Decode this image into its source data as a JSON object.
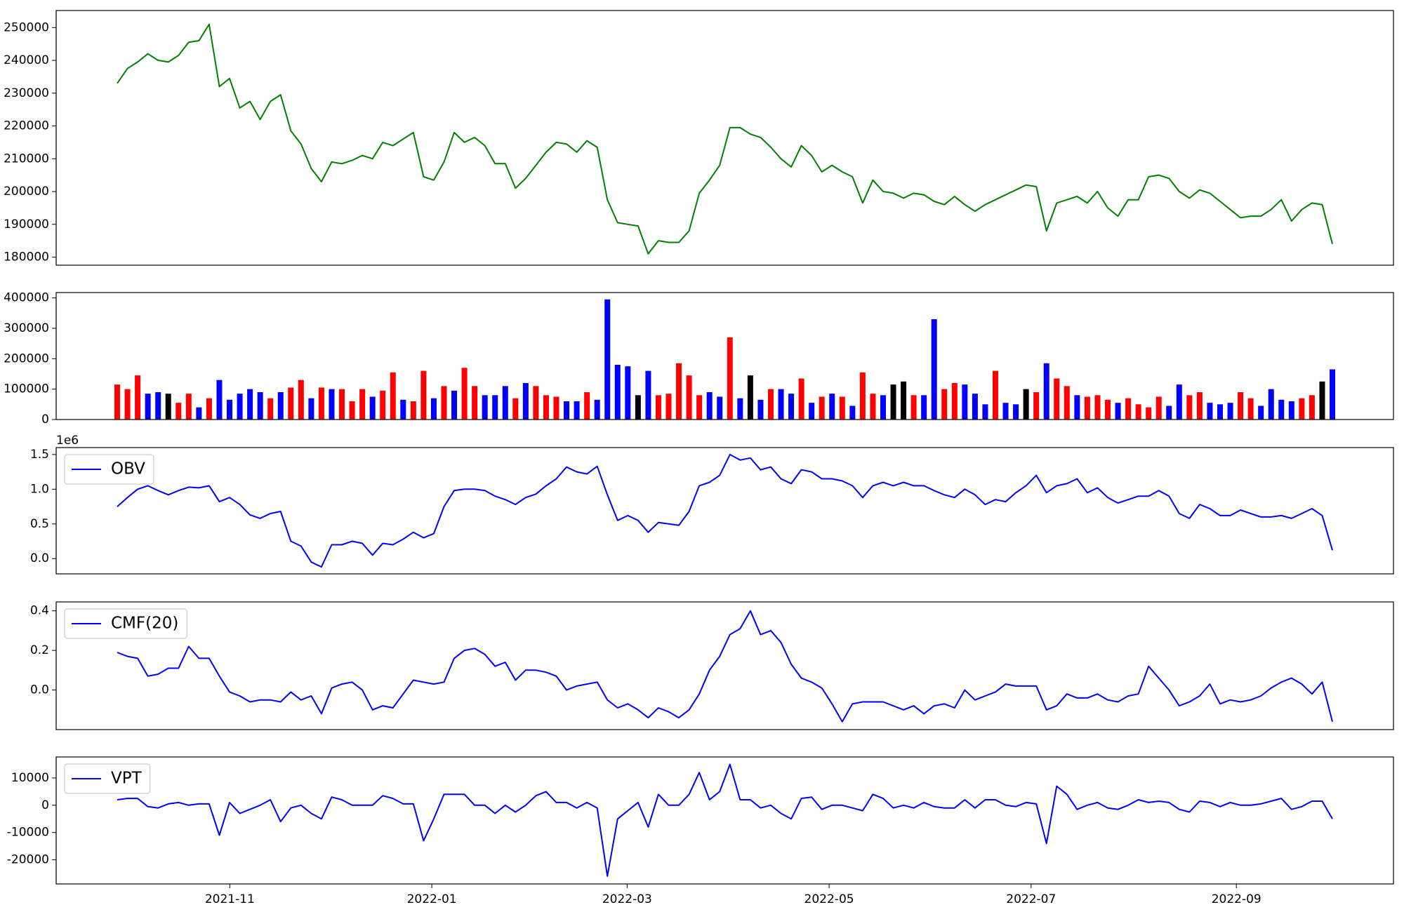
{
  "chart_data": [
    {
      "type": "line",
      "color": "#008000",
      "values": [
        233000,
        237500,
        239500,
        242000,
        240000,
        239500,
        241500,
        245500,
        246000,
        251000,
        232000,
        234500,
        225500,
        227500,
        222000,
        227500,
        229500,
        218500,
        214500,
        207000,
        203000,
        209000,
        208500,
        209500,
        211000,
        210000,
        215000,
        214000,
        216000,
        218000,
        204500,
        203500,
        209000,
        218000,
        215000,
        216500,
        214000,
        208500,
        208500,
        201000,
        204000,
        208000,
        212000,
        215000,
        214500,
        212000,
        215500,
        213500,
        197500,
        190500,
        190000,
        189500,
        181000,
        185000,
        184500,
        184500,
        188000,
        199500,
        203500,
        208000,
        219500,
        219500,
        217500,
        216500,
        213500,
        210000,
        207500,
        214000,
        211000,
        206000,
        208000,
        206000,
        204500,
        196500,
        203500,
        200000,
        199500,
        198000,
        199500,
        199000,
        197000,
        196000,
        198500,
        196000,
        194000,
        196000,
        197500,
        199000,
        200500,
        202000,
        201500,
        188000,
        196500,
        197500,
        198500,
        196500,
        200000,
        195000,
        192500,
        197500,
        197500,
        204500,
        205000,
        204000,
        200000,
        198000,
        200500,
        199500,
        197000,
        194500,
        192000,
        192500,
        192500,
        194500,
        197500,
        191000,
        194500,
        196500,
        196000,
        184000
      ],
      "ylim": [
        177540,
        255200
      ],
      "yticks": [
        180000,
        190000,
        200000,
        210000,
        220000,
        230000,
        240000,
        250000
      ]
    },
    {
      "type": "bar",
      "values": [
        115000,
        100000,
        145000,
        85000,
        90000,
        85000,
        55000,
        85000,
        40000,
        70000,
        130000,
        65000,
        85000,
        100000,
        90000,
        70000,
        90000,
        105000,
        130000,
        70000,
        105000,
        100000,
        100000,
        60000,
        100000,
        75000,
        95000,
        155000,
        65000,
        60000,
        160000,
        70000,
        110000,
        95000,
        170000,
        110000,
        80000,
        80000,
        110000,
        70000,
        120000,
        110000,
        80000,
        75000,
        60000,
        60000,
        90000,
        65000,
        395000,
        180000,
        175000,
        80000,
        160000,
        80000,
        85000,
        185000,
        145000,
        80000,
        90000,
        75000,
        270000,
        70000,
        145000,
        65000,
        100000,
        100000,
        85000,
        135000,
        55000,
        75000,
        85000,
        75000,
        45000,
        155000,
        85000,
        80000,
        115000,
        125000,
        80000,
        80000,
        330000,
        100000,
        120000,
        115000,
        85000,
        50000,
        160000,
        55000,
        50000,
        100000,
        90000,
        185000,
        135000,
        110000,
        80000,
        75000,
        80000,
        65000,
        55000,
        70000,
        50000,
        40000,
        75000,
        45000,
        115000,
        80000,
        90000,
        55000,
        50000,
        55000,
        90000,
        70000,
        45000,
        100000,
        65000,
        60000,
        70000,
        80000,
        125000,
        165000
      ],
      "colors": [
        "red",
        "red",
        "red",
        "blue",
        "blue",
        "black",
        "red",
        "red",
        "blue",
        "red",
        "blue",
        "blue",
        "blue",
        "blue",
        "blue",
        "red",
        "blue",
        "red",
        "red",
        "blue",
        "red",
        "blue",
        "red",
        "red",
        "red",
        "blue",
        "red",
        "red",
        "blue",
        "red",
        "red",
        "blue",
        "red",
        "blue",
        "red",
        "red",
        "blue",
        "blue",
        "blue",
        "red",
        "blue",
        "red",
        "red",
        "red",
        "blue",
        "blue",
        "red",
        "blue",
        "blue",
        "blue",
        "blue",
        "black",
        "blue",
        "red",
        "red",
        "red",
        "red",
        "red",
        "blue",
        "blue",
        "red",
        "blue",
        "black",
        "blue",
        "red",
        "blue",
        "blue",
        "red",
        "blue",
        "red",
        "blue",
        "red",
        "blue",
        "red",
        "red",
        "blue",
        "black",
        "black",
        "red",
        "blue",
        "blue",
        "red",
        "red",
        "blue",
        "blue",
        "blue",
        "red",
        "blue",
        "blue",
        "black",
        "red",
        "blue",
        "red",
        "red",
        "blue",
        "red",
        "red",
        "red",
        "blue",
        "red",
        "red",
        "red",
        "red",
        "blue",
        "blue",
        "red",
        "red",
        "blue",
        "blue",
        "blue",
        "red",
        "red",
        "blue",
        "blue",
        "blue",
        "blue",
        "red",
        "red",
        "black",
        "blue"
      ],
      "ylim": [
        0,
        417600
      ],
      "yticks": [
        0,
        100000,
        200000,
        300000,
        400000
      ]
    },
    {
      "type": "line",
      "legend": "upper left",
      "y_offset_label": "1e6",
      "series": [
        {
          "name": "OBV",
          "color": "#0000ff",
          "values": [
            0.75,
            0.88,
            1.0,
            1.05,
            0.98,
            0.92,
            0.98,
            1.03,
            1.02,
            1.05,
            0.82,
            0.88,
            0.78,
            0.63,
            0.58,
            0.65,
            0.68,
            0.25,
            0.18,
            -0.05,
            -0.12,
            0.2,
            0.2,
            0.25,
            0.22,
            0.05,
            0.22,
            0.2,
            0.28,
            0.38,
            0.3,
            0.36,
            0.75,
            0.98,
            1.0,
            1.0,
            0.98,
            0.9,
            0.85,
            0.78,
            0.88,
            0.93,
            1.05,
            1.15,
            1.32,
            1.25,
            1.22,
            1.33,
            0.92,
            0.55,
            0.62,
            0.55,
            0.38,
            0.52,
            0.5,
            0.48,
            0.68,
            1.05,
            1.1,
            1.2,
            1.5,
            1.42,
            1.45,
            1.28,
            1.32,
            1.15,
            1.08,
            1.28,
            1.25,
            1.15,
            1.15,
            1.12,
            1.05,
            0.88,
            1.05,
            1.1,
            1.05,
            1.1,
            1.05,
            1.05,
            0.98,
            0.92,
            0.88,
            1.0,
            0.92,
            0.78,
            0.85,
            0.82,
            0.95,
            1.05,
            1.2,
            0.95,
            1.05,
            1.08,
            1.15,
            0.95,
            1.02,
            0.88,
            0.8,
            0.85,
            0.9,
            0.9,
            0.98,
            0.9,
            0.65,
            0.58,
            0.78,
            0.72,
            0.62,
            0.62,
            0.7,
            0.65,
            0.6,
            0.6,
            0.62,
            0.58,
            0.65,
            0.72,
            0.62,
            0.12
          ]
        }
      ],
      "ylim": [
        -0.22,
        1.6
      ],
      "yticks": [
        {
          "value": 0,
          "label": "0.0"
        },
        0.5,
        {
          "value": 1,
          "label": "1.0"
        },
        1.5
      ]
    },
    {
      "type": "line",
      "legend": "upper left",
      "series": [
        {
          "name": "CMF(20)",
          "color": "#0000ff",
          "values": [
            0.19,
            0.17,
            0.16,
            0.07,
            0.08,
            0.11,
            0.11,
            0.22,
            0.16,
            0.16,
            0.07,
            -0.01,
            -0.03,
            -0.06,
            -0.05,
            -0.05,
            -0.06,
            -0.01,
            -0.05,
            -0.03,
            -0.12,
            0.01,
            0.03,
            0.04,
            0.0,
            -0.1,
            -0.08,
            -0.09,
            -0.02,
            0.05,
            0.04,
            0.03,
            0.04,
            0.16,
            0.2,
            0.21,
            0.18,
            0.12,
            0.14,
            0.05,
            0.1,
            0.1,
            0.09,
            0.07,
            0.0,
            0.02,
            0.03,
            0.04,
            -0.05,
            -0.09,
            -0.07,
            -0.1,
            -0.14,
            -0.09,
            -0.11,
            -0.14,
            -0.1,
            -0.02,
            0.1,
            0.17,
            0.28,
            0.31,
            0.4,
            0.28,
            0.3,
            0.24,
            0.13,
            0.06,
            0.04,
            0.01,
            -0.07,
            -0.16,
            -0.07,
            -0.06,
            -0.06,
            -0.06,
            -0.08,
            -0.1,
            -0.08,
            -0.12,
            -0.08,
            -0.07,
            -0.09,
            0.0,
            -0.05,
            -0.03,
            -0.01,
            0.03,
            0.02,
            0.02,
            0.02,
            -0.1,
            -0.08,
            -0.02,
            -0.04,
            -0.04,
            -0.02,
            -0.05,
            -0.06,
            -0.03,
            -0.02,
            0.12,
            0.06,
            0.0,
            -0.08,
            -0.06,
            -0.03,
            0.03,
            -0.07,
            -0.05,
            -0.06,
            -0.05,
            -0.03,
            0.01,
            0.04,
            0.06,
            0.03,
            -0.02,
            0.04,
            -0.16
          ]
        }
      ],
      "ylim": [
        -0.2,
        0.445
      ],
      "yticks": [
        {
          "value": 0,
          "label": "0.0"
        },
        0.2,
        0.4
      ]
    },
    {
      "type": "line",
      "legend": "upper left",
      "series": [
        {
          "name": "VPT",
          "color": "#0000ff",
          "values": [
            2000,
            2500,
            2500,
            -500,
            -1000,
            500,
            1000,
            0,
            500,
            500,
            -11000,
            1000,
            -3000,
            -1500,
            0,
            2000,
            -6000,
            -1000,
            0,
            -3000,
            -5000,
            3000,
            2000,
            0,
            0,
            0,
            3500,
            2500,
            500,
            500,
            -13000,
            -5000,
            4000,
            4000,
            4000,
            0,
            0,
            -3000,
            0,
            -2500,
            0,
            3500,
            5000,
            1000,
            1000,
            -1000,
            1000,
            -1000,
            -26000,
            -5000,
            -2000,
            1000,
            -8000,
            4000,
            0,
            0,
            4000,
            12000,
            2000,
            5000,
            15000,
            2000,
            2000,
            -1000,
            0,
            -3000,
            -5000,
            2500,
            3000,
            -1500,
            0,
            0,
            -1000,
            -2000,
            4000,
            2500,
            -1000,
            0,
            -1000,
            1000,
            -500,
            -1000,
            -1000,
            2000,
            -1000,
            2000,
            2000,
            0,
            -500,
            1000,
            500,
            -14000,
            7000,
            4000,
            -1500,
            0,
            1000,
            -1000,
            -1500,
            0,
            2000,
            1000,
            1500,
            1000,
            -1500,
            -2500,
            1500,
            1000,
            -500,
            1000,
            0,
            0,
            500,
            1500,
            2500,
            -1500,
            -500,
            1500,
            1500,
            -5000
          ]
        }
      ],
      "ylim": [
        -28850,
        17700
      ],
      "yticks": [
        -20000,
        -10000,
        0,
        10000
      ],
      "xticks": [
        "2021-11",
        "2022-01",
        "2022-03",
        "2022-05",
        "2022-07",
        "2022-09"
      ]
    }
  ]
}
